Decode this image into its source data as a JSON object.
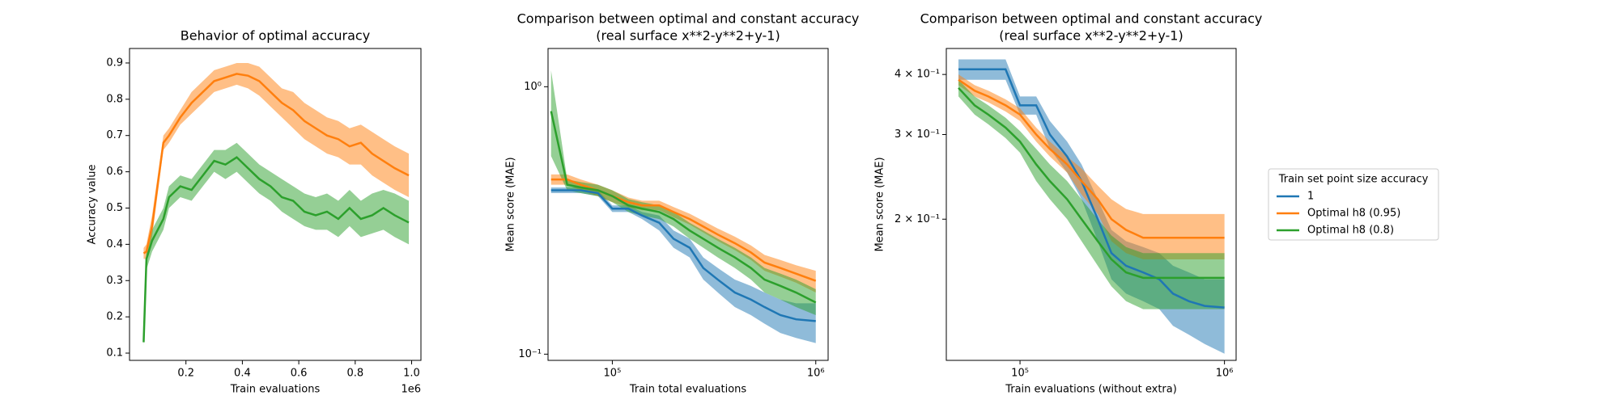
{
  "chart_data": [
    {
      "type": "line",
      "title": "Behavior of optimal accuracy",
      "xlabel": "Train evaluations",
      "ylabel": "Accuracy value",
      "x_offset_label": "1e6",
      "xscale": "linear",
      "yscale": "linear",
      "xlim": [
        0,
        1033000
      ],
      "ylim": [
        0.08,
        0.94
      ],
      "xticks": [
        {
          "value": 200000,
          "label": "0.2"
        },
        {
          "value": 400000,
          "label": "0.4"
        },
        {
          "value": 600000,
          "label": "0.6"
        },
        {
          "value": 800000,
          "label": "0.8"
        },
        {
          "value": 1000000,
          "label": "1.0"
        }
      ],
      "yticks": [
        0.1,
        0.2,
        0.3,
        0.4,
        0.5,
        0.6,
        0.7,
        0.8,
        0.9
      ],
      "x": [
        50000,
        60000,
        80000,
        120000,
        140000,
        180000,
        220000,
        260000,
        300000,
        340000,
        380000,
        420000,
        460000,
        500000,
        540000,
        580000,
        620000,
        660000,
        700000,
        740000,
        780000,
        820000,
        860000,
        900000,
        940000,
        990000
      ],
      "series": [
        {
          "color": "#ff7f0e",
          "values": [
            0.375,
            0.38,
            0.45,
            0.68,
            0.7,
            0.75,
            0.79,
            0.82,
            0.85,
            0.86,
            0.87,
            0.865,
            0.85,
            0.82,
            0.79,
            0.77,
            0.74,
            0.72,
            0.7,
            0.69,
            0.67,
            0.68,
            0.65,
            0.63,
            0.61,
            0.59
          ],
          "lower": [
            0.36,
            0.36,
            0.42,
            0.66,
            0.68,
            0.73,
            0.76,
            0.79,
            0.82,
            0.83,
            0.84,
            0.83,
            0.81,
            0.78,
            0.75,
            0.72,
            0.69,
            0.67,
            0.65,
            0.64,
            0.62,
            0.62,
            0.59,
            0.57,
            0.55,
            0.53
          ],
          "upper": [
            0.39,
            0.4,
            0.48,
            0.7,
            0.72,
            0.77,
            0.82,
            0.85,
            0.88,
            0.89,
            0.9,
            0.9,
            0.89,
            0.86,
            0.83,
            0.82,
            0.79,
            0.77,
            0.75,
            0.74,
            0.72,
            0.73,
            0.71,
            0.69,
            0.67,
            0.65
          ]
        },
        {
          "color": "#2ca02c",
          "values": [
            0.13,
            0.36,
            0.41,
            0.47,
            0.53,
            0.56,
            0.55,
            0.59,
            0.63,
            0.62,
            0.64,
            0.61,
            0.58,
            0.56,
            0.53,
            0.52,
            0.49,
            0.48,
            0.49,
            0.47,
            0.5,
            0.47,
            0.48,
            0.5,
            0.48,
            0.46
          ],
          "lower": [
            0.12,
            0.33,
            0.38,
            0.44,
            0.5,
            0.53,
            0.52,
            0.56,
            0.6,
            0.58,
            0.6,
            0.57,
            0.54,
            0.52,
            0.49,
            0.47,
            0.45,
            0.44,
            0.44,
            0.42,
            0.45,
            0.42,
            0.43,
            0.44,
            0.42,
            0.4
          ],
          "upper": [
            0.14,
            0.39,
            0.44,
            0.5,
            0.56,
            0.59,
            0.58,
            0.62,
            0.66,
            0.66,
            0.68,
            0.65,
            0.62,
            0.6,
            0.58,
            0.56,
            0.54,
            0.53,
            0.54,
            0.52,
            0.55,
            0.52,
            0.54,
            0.55,
            0.54,
            0.52
          ]
        }
      ]
    },
    {
      "type": "line",
      "title": "Comparison between optimal and constant accuracy",
      "subtitle": "(real surface x**2-y**2+y-1)",
      "xlabel": "Train total evaluations",
      "ylabel": "Mean score (MAE)",
      "xscale": "log",
      "yscale": "log",
      "xlim": [
        48300,
        1150000
      ],
      "ylim": [
        0.0948,
        1.39
      ],
      "xticks": [
        {
          "value": 100000,
          "label": "10⁵"
        },
        {
          "value": 1000000,
          "label": "10⁶"
        }
      ],
      "yticks": [
        {
          "value": 1,
          "label": "10⁰"
        },
        {
          "value": 0.1,
          "label": "10⁻¹"
        }
      ],
      "x": [
        50000,
        60000,
        70000,
        85000,
        100000,
        120000,
        140000,
        170000,
        200000,
        240000,
        280000,
        330000,
        400000,
        480000,
        560000,
        670000,
        800000,
        1000000
      ],
      "series": [
        {
          "color": "#1f77b4",
          "values": [
            0.41,
            0.41,
            0.41,
            0.4,
            0.35,
            0.35,
            0.33,
            0.31,
            0.27,
            0.25,
            0.21,
            0.19,
            0.17,
            0.16,
            0.15,
            0.14,
            0.135,
            0.133
          ],
          "lower": [
            0.4,
            0.4,
            0.4,
            0.39,
            0.34,
            0.34,
            0.32,
            0.29,
            0.25,
            0.23,
            0.19,
            0.17,
            0.15,
            0.14,
            0.13,
            0.12,
            0.115,
            0.11
          ],
          "upper": [
            0.42,
            0.42,
            0.42,
            0.41,
            0.36,
            0.36,
            0.34,
            0.33,
            0.29,
            0.27,
            0.23,
            0.21,
            0.19,
            0.18,
            0.17,
            0.16,
            0.155,
            0.155
          ]
        },
        {
          "color": "#ff7f0e",
          "values": [
            0.45,
            0.45,
            0.43,
            0.41,
            0.39,
            0.37,
            0.36,
            0.36,
            0.34,
            0.32,
            0.3,
            0.28,
            0.26,
            0.24,
            0.22,
            0.21,
            0.2,
            0.188
          ],
          "lower": [
            0.43,
            0.43,
            0.41,
            0.39,
            0.37,
            0.355,
            0.345,
            0.345,
            0.325,
            0.305,
            0.285,
            0.265,
            0.245,
            0.225,
            0.205,
            0.195,
            0.185,
            0.17
          ],
          "upper": [
            0.47,
            0.47,
            0.45,
            0.43,
            0.41,
            0.385,
            0.375,
            0.375,
            0.355,
            0.335,
            0.315,
            0.295,
            0.275,
            0.255,
            0.235,
            0.225,
            0.215,
            0.205
          ]
        },
        {
          "color": "#2ca02c",
          "values": [
            0.81,
            0.43,
            0.42,
            0.41,
            0.39,
            0.36,
            0.35,
            0.34,
            0.32,
            0.29,
            0.27,
            0.25,
            0.23,
            0.21,
            0.19,
            0.18,
            0.17,
            0.156
          ],
          "lower": [
            0.55,
            0.41,
            0.4,
            0.39,
            0.37,
            0.34,
            0.33,
            0.32,
            0.3,
            0.27,
            0.25,
            0.23,
            0.21,
            0.19,
            0.17,
            0.16,
            0.15,
            0.14
          ],
          "upper": [
            1.15,
            0.45,
            0.44,
            0.43,
            0.41,
            0.38,
            0.37,
            0.36,
            0.34,
            0.31,
            0.29,
            0.27,
            0.25,
            0.23,
            0.21,
            0.2,
            0.19,
            0.175
          ]
        }
      ]
    },
    {
      "type": "line",
      "title": "Comparison between optimal and constant accuracy",
      "subtitle": "(real surface x**2-y**2+y-1)",
      "xlabel": "Train evaluations (without extra)",
      "ylabel": "Mean score (MAE)",
      "xscale": "log",
      "yscale": "log",
      "xlim": [
        43600,
        1140000
      ],
      "ylim": [
        0.1017,
        0.453
      ],
      "xticks": [
        {
          "value": 100000,
          "label": "10⁵"
        },
        {
          "value": 1000000,
          "label": "10⁶"
        }
      ],
      "yticks": [
        {
          "value": 0.4,
          "label": "4 × 10⁻¹"
        },
        {
          "value": 0.3,
          "label": "3 × 10⁻¹"
        },
        {
          "value": 0.2,
          "label": "2 × 10⁻¹"
        }
      ],
      "legend": "outside-right",
      "legend_title": "Train set point size accuracy",
      "x": [
        50000,
        60000,
        70000,
        85000,
        100000,
        120000,
        140000,
        170000,
        200000,
        240000,
        280000,
        330000,
        400000,
        480000,
        560000,
        670000,
        800000,
        1000000
      ],
      "series": [
        {
          "name": "1",
          "color": "#1f77b4",
          "values": [
            0.41,
            0.41,
            0.41,
            0.41,
            0.345,
            0.345,
            0.3,
            0.27,
            0.24,
            0.2,
            0.17,
            0.16,
            0.155,
            0.15,
            0.14,
            0.135,
            0.132,
            0.131
          ],
          "lower": [
            0.39,
            0.39,
            0.39,
            0.39,
            0.33,
            0.33,
            0.28,
            0.25,
            0.22,
            0.18,
            0.15,
            0.14,
            0.135,
            0.13,
            0.12,
            0.115,
            0.11,
            0.105
          ],
          "upper": [
            0.43,
            0.43,
            0.43,
            0.43,
            0.36,
            0.36,
            0.32,
            0.29,
            0.26,
            0.22,
            0.19,
            0.18,
            0.175,
            0.17,
            0.16,
            0.155,
            0.15,
            0.15
          ]
        },
        {
          "name": "Optimal h8 (0.95)",
          "color": "#ff7f0e",
          "values": [
            0.39,
            0.37,
            0.36,
            0.345,
            0.33,
            0.3,
            0.28,
            0.26,
            0.24,
            0.22,
            0.2,
            0.19,
            0.183,
            0.183,
            0.183,
            0.183,
            0.183,
            0.183
          ],
          "lower": [
            0.38,
            0.36,
            0.35,
            0.335,
            0.32,
            0.29,
            0.27,
            0.25,
            0.225,
            0.205,
            0.18,
            0.17,
            0.165,
            0.165,
            0.165,
            0.165,
            0.165,
            0.165
          ],
          "upper": [
            0.4,
            0.38,
            0.37,
            0.355,
            0.34,
            0.31,
            0.29,
            0.27,
            0.255,
            0.235,
            0.22,
            0.21,
            0.205,
            0.205,
            0.205,
            0.205,
            0.205,
            0.205
          ]
        },
        {
          "name": "Optimal h8 (0.8)",
          "color": "#2ca02c",
          "values": [
            0.375,
            0.345,
            0.33,
            0.31,
            0.29,
            0.26,
            0.24,
            0.22,
            0.2,
            0.18,
            0.165,
            0.155,
            0.151,
            0.151,
            0.151,
            0.151,
            0.151,
            0.151
          ],
          "lower": [
            0.36,
            0.33,
            0.315,
            0.295,
            0.275,
            0.24,
            0.22,
            0.2,
            0.18,
            0.16,
            0.145,
            0.135,
            0.13,
            0.13,
            0.13,
            0.13,
            0.13,
            0.13
          ],
          "upper": [
            0.39,
            0.36,
            0.345,
            0.325,
            0.305,
            0.28,
            0.26,
            0.24,
            0.22,
            0.2,
            0.185,
            0.175,
            0.17,
            0.17,
            0.17,
            0.17,
            0.17,
            0.17
          ]
        }
      ]
    }
  ]
}
